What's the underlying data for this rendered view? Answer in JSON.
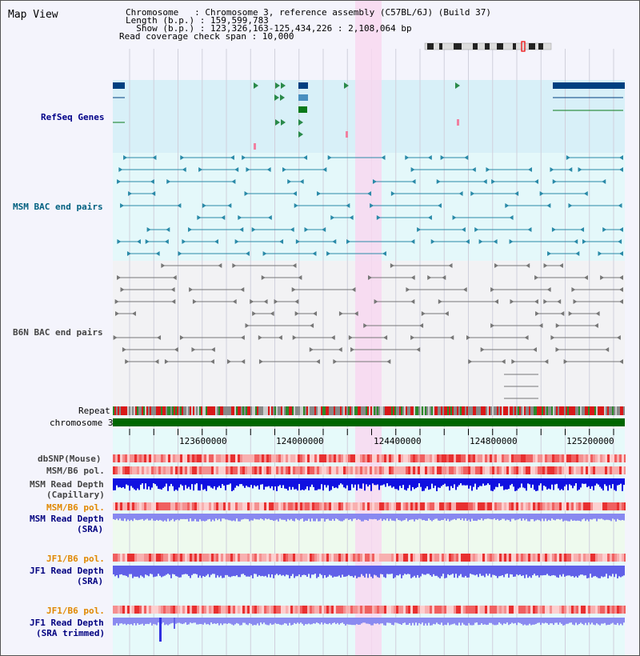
{
  "header": {
    "title": "Map View",
    "info_lines": [
      "Chromosome   : Chromosome 3, reference assembly (C57BL/6J) (Build 37)",
      "Length (b.p.) : 159,599,783",
      "  Show (b.p.) : 123,326,163-125,434,226 : 2,108,064 bp",
      "Read coverage check span : 10,000"
    ]
  },
  "tracks": {
    "refseq": "RefSeq Genes",
    "msm_bac": "MSM BAC end pairs",
    "b6n_bac": "B6N BAC end pairs",
    "repeat": "Repeat",
    "chromosome": "chromosome 3",
    "dbsnp": "dbSNP(Mouse)",
    "msm_b6_pol_1": "MSM/B6 pol.",
    "msm_read_depth_cap_1": "MSM Read Depth",
    "msm_read_depth_cap_2": "(Capillary)",
    "msm_b6_pol_2": "MSM/B6 pol.",
    "msm_read_depth_sra_1": "MSM Read Depth",
    "msm_read_depth_sra_2": "(SRA)",
    "jf1_b6_pol_1": "JF1/B6 pol.",
    "jf1_read_depth_sra_1": "JF1 Read Depth",
    "jf1_read_depth_sra_2": "(SRA)",
    "jf1_b6_pol_2": "JF1/B6 pol.",
    "jf1_read_depth_trim_1": "JF1 Read Depth",
    "jf1_read_depth_trim_2": "(SRA trimmed)"
  },
  "axis": {
    "ticks": [
      "123600000",
      "124000000",
      "124400000",
      "124800000",
      "125200000"
    ]
  },
  "colors": {
    "refseq_label": "#000088",
    "msm_label": "#006080",
    "b6n_label": "#444444",
    "orange_label": "#e08800",
    "blue_label": "#000080",
    "highlight": "#f8d8f0",
    "chromosome_bar": "#006600"
  }
}
